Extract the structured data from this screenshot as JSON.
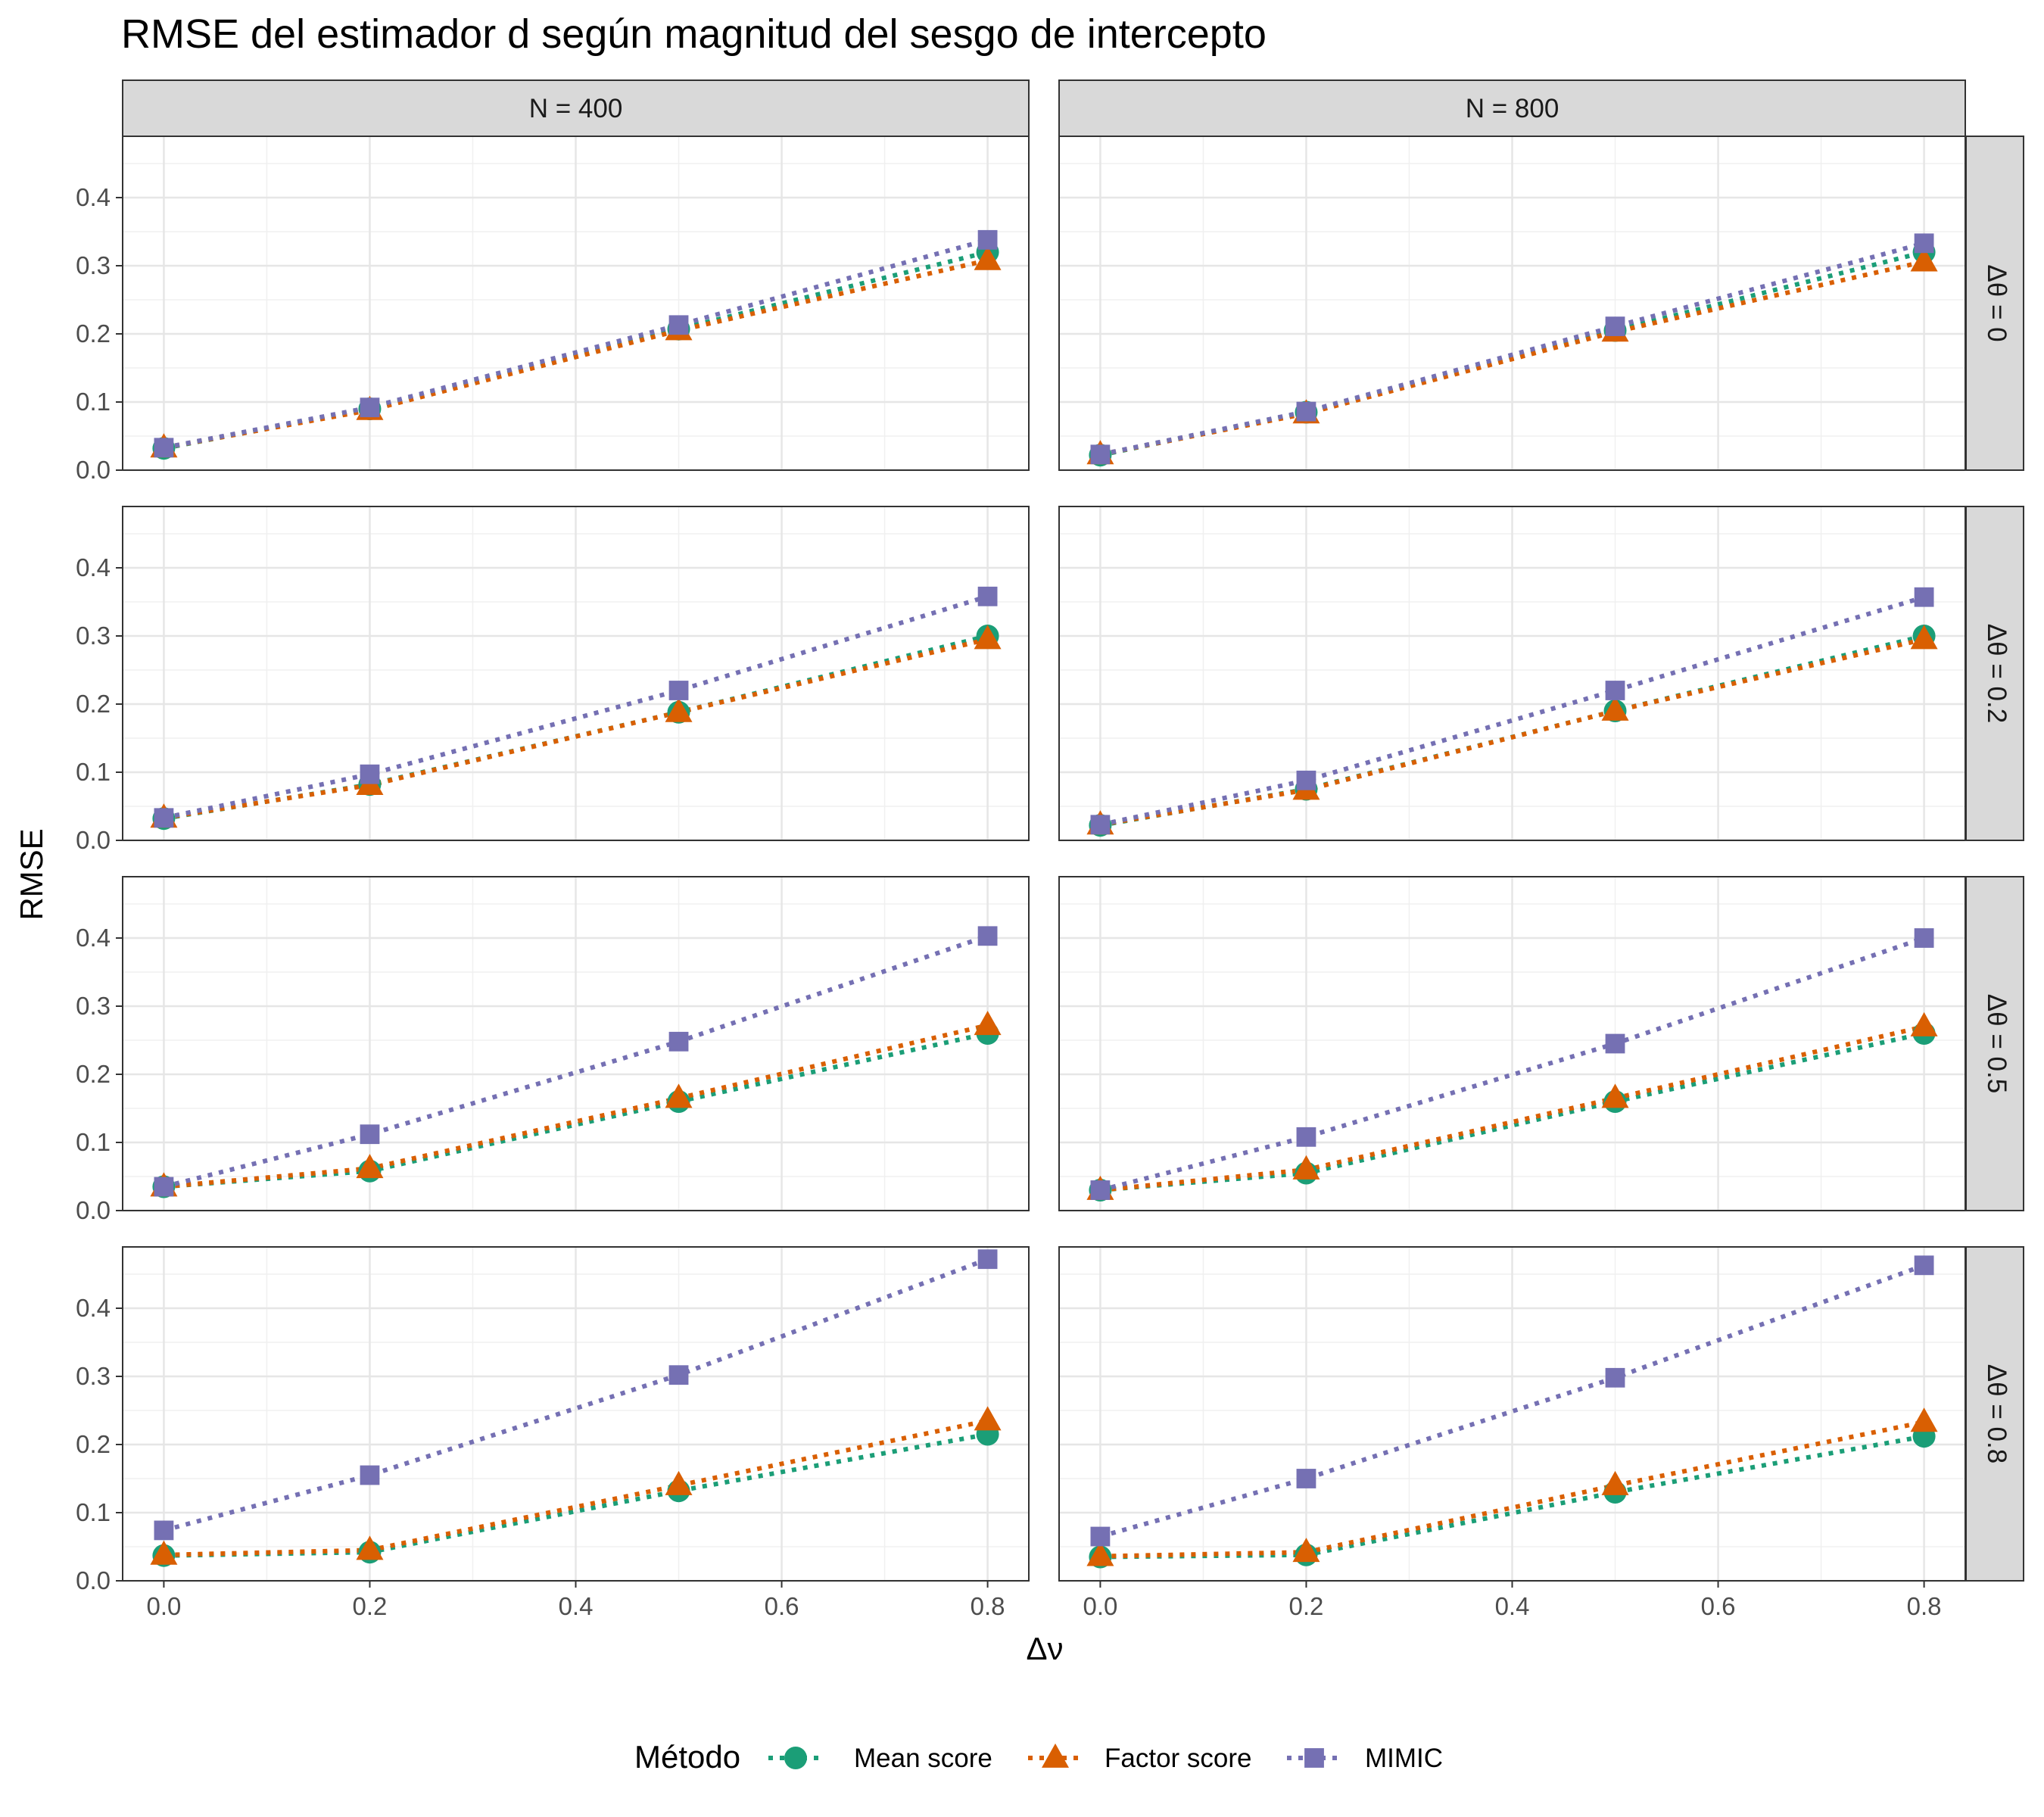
{
  "chart_data": {
    "type": "line",
    "title": "RMSE del estimador d según magnitud del sesgo de intercepto",
    "xlabel": "Δν",
    "ylabel": "RMSE",
    "xlim": [
      -0.04,
      0.84
    ],
    "ylim": [
      0,
      0.49
    ],
    "x_ticks": [
      0.0,
      0.2,
      0.4,
      0.6,
      0.8
    ],
    "x_tick_labels": [
      "0.0",
      "0.2",
      "0.4",
      "0.6",
      "0.8"
    ],
    "y_ticks": [
      0.0,
      0.1,
      0.2,
      0.3,
      0.4
    ],
    "y_tick_labels": [
      "0.0",
      "0.1",
      "0.2",
      "0.3",
      "0.4"
    ],
    "grid": true,
    "x": [
      0.0,
      0.2,
      0.5,
      0.8
    ],
    "facet_columns": [
      "N = 400",
      "N = 800"
    ],
    "facet_rows": [
      "Δθ = 0",
      "Δθ = 0.2",
      "Δθ = 0.5",
      "Δθ = 0.8"
    ],
    "legend": {
      "title": "Método",
      "position": "bottom",
      "items": [
        {
          "label": "Mean score",
          "color": "#1b9e77",
          "shape": "circle"
        },
        {
          "label": "Factor score",
          "color": "#d95f02",
          "shape": "triangle"
        },
        {
          "label": "MIMIC",
          "color": "#7570b3",
          "shape": "square"
        }
      ]
    },
    "panels": [
      {
        "column": 0,
        "row": 0,
        "series": [
          {
            "name": "Mean score",
            "values": [
              0.032,
              0.09,
              0.207,
              0.32
            ]
          },
          {
            "name": "Factor score",
            "values": [
              0.033,
              0.088,
              0.205,
              0.308
            ]
          },
          {
            "name": "MIMIC",
            "values": [
              0.033,
              0.092,
              0.213,
              0.338
            ]
          }
        ]
      },
      {
        "column": 1,
        "row": 0,
        "series": [
          {
            "name": "Mean score",
            "values": [
              0.022,
              0.085,
              0.205,
              0.32
            ]
          },
          {
            "name": "Factor score",
            "values": [
              0.023,
              0.083,
              0.203,
              0.306
            ]
          },
          {
            "name": "MIMIC",
            "values": [
              0.023,
              0.086,
              0.211,
              0.333
            ]
          }
        ]
      },
      {
        "column": 0,
        "row": 1,
        "series": [
          {
            "name": "Mean score",
            "values": [
              0.032,
              0.082,
              0.188,
              0.3
            ]
          },
          {
            "name": "Factor score",
            "values": [
              0.033,
              0.081,
              0.188,
              0.295
            ]
          },
          {
            "name": "MIMIC",
            "values": [
              0.033,
              0.097,
              0.22,
              0.358
            ]
          }
        ]
      },
      {
        "column": 1,
        "row": 1,
        "series": [
          {
            "name": "Mean score",
            "values": [
              0.022,
              0.075,
              0.19,
              0.3
            ]
          },
          {
            "name": "Factor score",
            "values": [
              0.023,
              0.074,
              0.19,
              0.295
            ]
          },
          {
            "name": "MIMIC",
            "values": [
              0.023,
              0.088,
              0.22,
              0.357
            ]
          }
        ]
      },
      {
        "column": 0,
        "row": 2,
        "series": [
          {
            "name": "Mean score",
            "values": [
              0.035,
              0.058,
              0.16,
              0.26
            ]
          },
          {
            "name": "Factor score",
            "values": [
              0.035,
              0.062,
              0.165,
              0.272
            ]
          },
          {
            "name": "MIMIC",
            "values": [
              0.035,
              0.112,
              0.248,
              0.403
            ]
          }
        ]
      },
      {
        "column": 1,
        "row": 2,
        "series": [
          {
            "name": "Mean score",
            "values": [
              0.03,
              0.055,
              0.16,
              0.26
            ]
          },
          {
            "name": "Factor score",
            "values": [
              0.03,
              0.06,
              0.165,
              0.27
            ]
          },
          {
            "name": "MIMIC",
            "values": [
              0.03,
              0.108,
              0.245,
              0.4
            ]
          }
        ]
      },
      {
        "column": 0,
        "row": 3,
        "series": [
          {
            "name": "Mean score",
            "values": [
              0.037,
              0.042,
              0.132,
              0.215
            ]
          },
          {
            "name": "Factor score",
            "values": [
              0.038,
              0.045,
              0.14,
              0.235
            ]
          },
          {
            "name": "MIMIC",
            "values": [
              0.074,
              0.155,
              0.302,
              0.472
            ]
          }
        ]
      },
      {
        "column": 1,
        "row": 3,
        "series": [
          {
            "name": "Mean score",
            "values": [
              0.035,
              0.038,
              0.13,
              0.212
            ]
          },
          {
            "name": "Factor score",
            "values": [
              0.036,
              0.042,
              0.14,
              0.233
            ]
          },
          {
            "name": "MIMIC",
            "values": [
              0.065,
              0.15,
              0.298,
              0.463
            ]
          }
        ]
      }
    ]
  }
}
